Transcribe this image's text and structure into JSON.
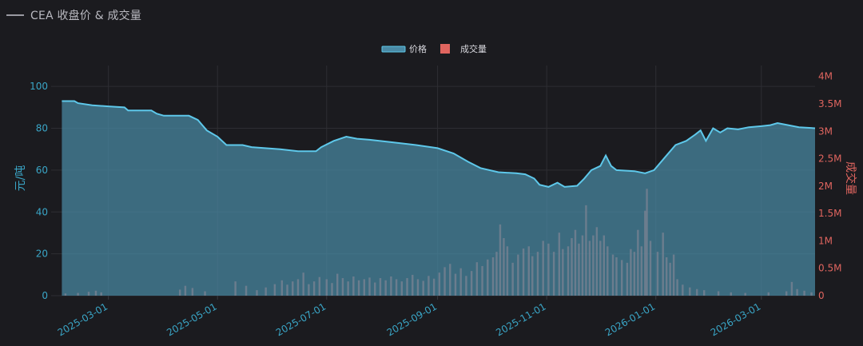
{
  "header": {
    "title": "CEA 收盘价 & 成交量"
  },
  "colors": {
    "price_line": "#5ec8ea",
    "price_fill": "#4a8aa5",
    "volume_bar": "#e0655f",
    "left_axis": "#3aa6c7",
    "right_axis": "#e0655f",
    "background": "#1b1b1f"
  },
  "chart_data": {
    "type": "area",
    "legend": {
      "position": "top-center",
      "items": [
        "价格",
        "成交量"
      ]
    },
    "grid": true,
    "xaxis": {
      "type": "date",
      "range": [
        "2025-01-28",
        "2026-03-31"
      ],
      "tick_labels": [
        "2025-03-01",
        "2025-05-01",
        "2025-07-01",
        "2025-09-01",
        "2025-11-01",
        "2026-01-01",
        "2026-03-01"
      ]
    },
    "yaxis_left": {
      "label": "元/吨",
      "range": [
        0,
        110
      ],
      "tick_labels": [
        "0",
        "20",
        "40",
        "60",
        "80",
        "100"
      ]
    },
    "yaxis_right": {
      "label": "成交量",
      "range": [
        0,
        4200000
      ],
      "tick_labels": [
        "0",
        "0.5M",
        "1M",
        "1.5M",
        "2M",
        "2.5M",
        "3M",
        "3.5M",
        "4M"
      ]
    },
    "series": [
      {
        "name": "价格",
        "type": "area",
        "points": [
          [
            "2025-02-03",
            93
          ],
          [
            "2025-02-10",
            93
          ],
          [
            "2025-02-12",
            92
          ],
          [
            "2025-02-20",
            91
          ],
          [
            "2025-03-01",
            90.5
          ],
          [
            "2025-03-10",
            90
          ],
          [
            "2025-03-12",
            88.5
          ],
          [
            "2025-03-25",
            88.5
          ],
          [
            "2025-03-28",
            87
          ],
          [
            "2025-04-01",
            86
          ],
          [
            "2025-04-15",
            86
          ],
          [
            "2025-04-20",
            84
          ],
          [
            "2025-04-25",
            79
          ],
          [
            "2025-05-01",
            76
          ],
          [
            "2025-05-06",
            72
          ],
          [
            "2025-05-15",
            72
          ],
          [
            "2025-05-20",
            71
          ],
          [
            "2025-06-05",
            70
          ],
          [
            "2025-06-15",
            69
          ],
          [
            "2025-06-25",
            69
          ],
          [
            "2025-06-28",
            71
          ],
          [
            "2025-07-05",
            74
          ],
          [
            "2025-07-12",
            76
          ],
          [
            "2025-07-18",
            75
          ],
          [
            "2025-07-25",
            74.5
          ],
          [
            "2025-08-05",
            73.5
          ],
          [
            "2025-08-20",
            72
          ],
          [
            "2025-09-01",
            70.5
          ],
          [
            "2025-09-10",
            68
          ],
          [
            "2025-09-18",
            64
          ],
          [
            "2025-09-25",
            61
          ],
          [
            "2025-10-05",
            59
          ],
          [
            "2025-10-15",
            58.5
          ],
          [
            "2025-10-20",
            58
          ],
          [
            "2025-10-25",
            56
          ],
          [
            "2025-10-28",
            53
          ],
          [
            "2025-11-02",
            52
          ],
          [
            "2025-11-07",
            54
          ],
          [
            "2025-11-11",
            52
          ],
          [
            "2025-11-18",
            52.5
          ],
          [
            "2025-11-22",
            56
          ],
          [
            "2025-11-26",
            60
          ],
          [
            "2025-12-01",
            62
          ],
          [
            "2025-12-04",
            67
          ],
          [
            "2025-12-07",
            62
          ],
          [
            "2025-12-10",
            60
          ],
          [
            "2025-12-20",
            59.5
          ],
          [
            "2025-12-26",
            58.5
          ],
          [
            "2025-12-31",
            60
          ],
          [
            "2026-01-06",
            66
          ],
          [
            "2026-01-12",
            72
          ],
          [
            "2026-01-18",
            74
          ],
          [
            "2026-01-23",
            77
          ],
          [
            "2026-01-26",
            79
          ],
          [
            "2026-01-29",
            74
          ],
          [
            "2026-02-02",
            80
          ],
          [
            "2026-02-06",
            78
          ],
          [
            "2026-02-10",
            80
          ],
          [
            "2026-02-16",
            79.5
          ],
          [
            "2026-02-22",
            80.5
          ],
          [
            "2026-03-01",
            81
          ],
          [
            "2026-03-06",
            81.5
          ],
          [
            "2026-03-10",
            82.5
          ],
          [
            "2026-03-16",
            81.5
          ],
          [
            "2026-03-22",
            80.5
          ],
          [
            "2026-03-31",
            80
          ]
        ]
      },
      {
        "name": "成交量",
        "type": "bar",
        "points": [
          [
            "2025-02-05",
            40000
          ],
          [
            "2025-02-12",
            50000
          ],
          [
            "2025-02-18",
            70000
          ],
          [
            "2025-02-22",
            90000
          ],
          [
            "2025-02-25",
            60000
          ],
          [
            "2025-04-10",
            110000
          ],
          [
            "2025-04-13",
            180000
          ],
          [
            "2025-04-17",
            140000
          ],
          [
            "2025-04-24",
            80000
          ],
          [
            "2025-05-11",
            260000
          ],
          [
            "2025-05-17",
            180000
          ],
          [
            "2025-05-23",
            100000
          ],
          [
            "2025-05-28",
            150000
          ],
          [
            "2025-06-02",
            210000
          ],
          [
            "2025-06-06",
            280000
          ],
          [
            "2025-06-09",
            200000
          ],
          [
            "2025-06-12",
            260000
          ],
          [
            "2025-06-15",
            300000
          ],
          [
            "2025-06-18",
            420000
          ],
          [
            "2025-06-21",
            210000
          ],
          [
            "2025-06-24",
            260000
          ],
          [
            "2025-06-27",
            340000
          ],
          [
            "2025-07-01",
            300000
          ],
          [
            "2025-07-04",
            230000
          ],
          [
            "2025-07-07",
            400000
          ],
          [
            "2025-07-10",
            320000
          ],
          [
            "2025-07-13",
            260000
          ],
          [
            "2025-07-16",
            350000
          ],
          [
            "2025-07-19",
            280000
          ],
          [
            "2025-07-22",
            300000
          ],
          [
            "2025-07-25",
            330000
          ],
          [
            "2025-07-28",
            240000
          ],
          [
            "2025-07-31",
            320000
          ],
          [
            "2025-08-03",
            280000
          ],
          [
            "2025-08-06",
            350000
          ],
          [
            "2025-08-09",
            300000
          ],
          [
            "2025-08-12",
            260000
          ],
          [
            "2025-08-15",
            320000
          ],
          [
            "2025-08-18",
            380000
          ],
          [
            "2025-08-21",
            300000
          ],
          [
            "2025-08-24",
            270000
          ],
          [
            "2025-08-27",
            360000
          ],
          [
            "2025-08-30",
            310000
          ],
          [
            "2025-09-02",
            420000
          ],
          [
            "2025-09-05",
            520000
          ],
          [
            "2025-09-08",
            580000
          ],
          [
            "2025-09-11",
            400000
          ],
          [
            "2025-09-14",
            500000
          ],
          [
            "2025-09-17",
            360000
          ],
          [
            "2025-09-20",
            450000
          ],
          [
            "2025-09-23",
            610000
          ],
          [
            "2025-09-26",
            540000
          ],
          [
            "2025-09-29",
            660000
          ],
          [
            "2025-10-02",
            700000
          ],
          [
            "2025-10-04",
            800000
          ],
          [
            "2025-10-06",
            1300000
          ],
          [
            "2025-10-08",
            1050000
          ],
          [
            "2025-10-10",
            900000
          ],
          [
            "2025-10-13",
            600000
          ],
          [
            "2025-10-16",
            750000
          ],
          [
            "2025-10-19",
            860000
          ],
          [
            "2025-10-22",
            900000
          ],
          [
            "2025-10-24",
            720000
          ],
          [
            "2025-10-27",
            800000
          ],
          [
            "2025-10-30",
            1000000
          ],
          [
            "2025-11-02",
            950000
          ],
          [
            "2025-11-05",
            800000
          ],
          [
            "2025-11-08",
            1150000
          ],
          [
            "2025-11-10",
            850000
          ],
          [
            "2025-11-13",
            900000
          ],
          [
            "2025-11-15",
            1050000
          ],
          [
            "2025-11-17",
            1200000
          ],
          [
            "2025-11-19",
            950000
          ],
          [
            "2025-11-21",
            1100000
          ],
          [
            "2025-11-23",
            1650000
          ],
          [
            "2025-11-25",
            1000000
          ],
          [
            "2025-11-27",
            1100000
          ],
          [
            "2025-11-29",
            1250000
          ],
          [
            "2025-12-01",
            1000000
          ],
          [
            "2025-12-03",
            1100000
          ],
          [
            "2025-12-05",
            900000
          ],
          [
            "2025-12-08",
            750000
          ],
          [
            "2025-12-10",
            700000
          ],
          [
            "2025-12-13",
            650000
          ],
          [
            "2025-12-16",
            600000
          ],
          [
            "2025-12-18",
            850000
          ],
          [
            "2025-12-20",
            800000
          ],
          [
            "2025-12-22",
            1200000
          ],
          [
            "2025-12-24",
            900000
          ],
          [
            "2025-12-26",
            1550000
          ],
          [
            "2025-12-27",
            1950000
          ],
          [
            "2025-12-29",
            1000000
          ],
          [
            "2026-01-02",
            800000
          ],
          [
            "2026-01-05",
            1150000
          ],
          [
            "2026-01-07",
            700000
          ],
          [
            "2026-01-09",
            600000
          ],
          [
            "2026-01-11",
            750000
          ],
          [
            "2026-01-13",
            300000
          ],
          [
            "2026-01-16",
            200000
          ],
          [
            "2026-01-20",
            150000
          ],
          [
            "2026-01-24",
            120000
          ],
          [
            "2026-01-28",
            100000
          ],
          [
            "2026-02-05",
            80000
          ],
          [
            "2026-02-12",
            60000
          ],
          [
            "2026-02-20",
            50000
          ],
          [
            "2026-03-05",
            60000
          ],
          [
            "2026-03-15",
            80000
          ],
          [
            "2026-03-18",
            250000
          ],
          [
            "2026-03-21",
            120000
          ],
          [
            "2026-03-25",
            90000
          ],
          [
            "2026-03-29",
            60000
          ]
        ]
      }
    ]
  }
}
